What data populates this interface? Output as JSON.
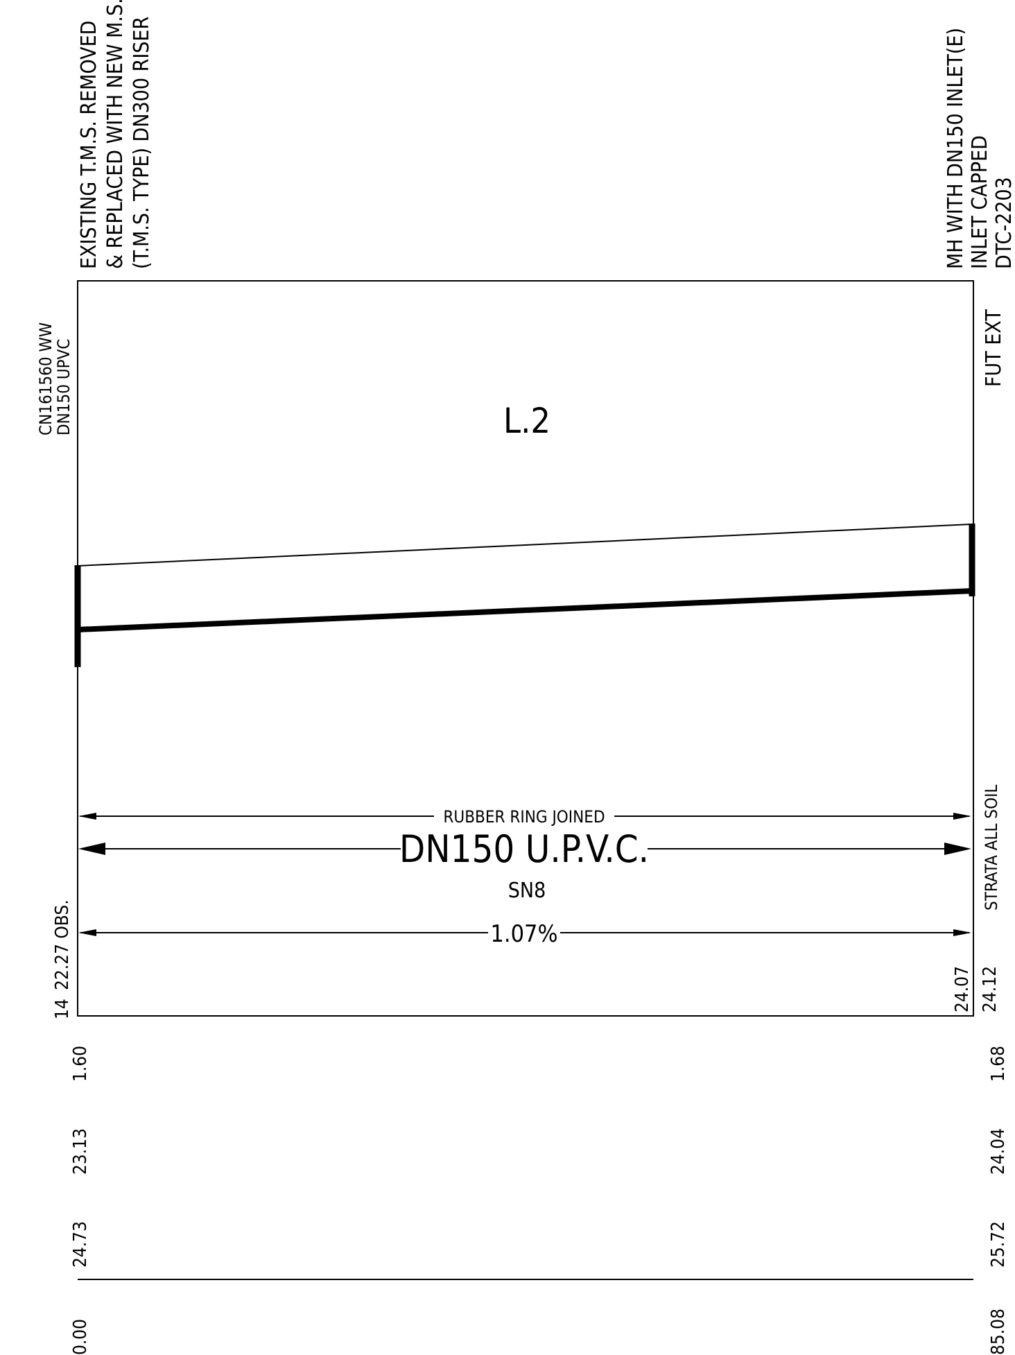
{
  "notes": {
    "upstream_structure": [
      "EXISTING T.M.S. REMOVED",
      "& REPLACED WITH NEW M.S.",
      "(T.M.S. TYPE) DN300 RISER"
    ],
    "downstream_structure": [
      "MH WITH DN150 INLET(E)",
      "INLET CAPPED",
      "DTC-2203"
    ],
    "existing_pipe": [
      "CN161560 WW",
      "DN150 UPVC"
    ],
    "future_extension": "FUT EXT",
    "strata": "STRATA ALL SOIL"
  },
  "line_label": "L.2",
  "pipe": {
    "joint": "RUBBER RING JOINED",
    "material": "DN150 U.P.V.C.",
    "class": "SN8",
    "grade": "1.07%"
  },
  "levels": {
    "left": {
      "obstruction": "22.27 OBS.",
      "chainage_marker": "14",
      "depth": "1.60",
      "invert": "23.13",
      "surface": "24.73",
      "chainage": "0.00"
    },
    "right": {
      "level_a": "24.07",
      "level_b": "24.12",
      "depth": "1.68",
      "invert": "24.04",
      "surface": "25.72",
      "chainage": "85.08"
    }
  }
}
